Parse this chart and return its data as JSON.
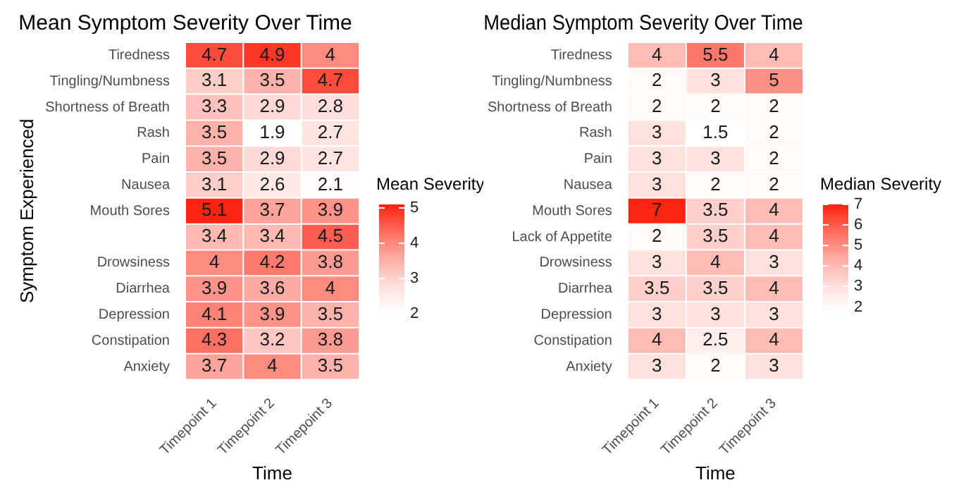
{
  "chart_data": [
    {
      "type": "heatmap",
      "title": "Mean Symptom Severity Over Time",
      "xlabel": "Time",
      "ylabel": "Symptom Experienced",
      "clabel": "Mean Severity",
      "categories": [
        "Timepoint 1",
        "Timepoint 2",
        "Timepoint 3"
      ],
      "y_categories": [
        "Tiredness",
        "Tingling/Numbness",
        "Shortness of Breath",
        "Rash",
        "Pain",
        "Nausea",
        "Mouth Sores",
        null,
        "Drowsiness",
        "Diarrhea",
        "Depression",
        "Constipation",
        "Anxiety"
      ],
      "cells": [
        [
          4.7,
          4.9,
          4
        ],
        [
          3.1,
          3.5,
          4.7
        ],
        [
          3.3,
          2.9,
          2.8
        ],
        [
          3.5,
          1.9,
          2.7
        ],
        [
          3.5,
          2.9,
          2.7
        ],
        [
          3.1,
          2.6,
          2.1
        ],
        [
          5.1,
          3.7,
          3.9
        ],
        [
          3.4,
          3.4,
          4.5
        ],
        [
          4,
          4.2,
          3.8
        ],
        [
          3.9,
          3.6,
          4
        ],
        [
          4.1,
          3.9,
          3.5
        ],
        [
          4.3,
          3.2,
          3.8
        ],
        [
          3.7,
          4,
          3.5
        ]
      ],
      "clim": [
        1.9,
        5.1
      ],
      "cticks": [
        2,
        3,
        4,
        5
      ],
      "data_labels": true
    },
    {
      "type": "heatmap",
      "title": "Median Symptom Severity Over Time",
      "xlabel": "Time",
      "clabel": "Median Severity",
      "categories": [
        "Timepoint 1",
        "Timepoint 2",
        "Timepoint 3"
      ],
      "y_categories": [
        "Tiredness",
        "Tingling/Numbness",
        "Shortness of Breath",
        "Rash",
        "Pain",
        "Nausea",
        "Mouth Sores",
        "Lack of Appetite",
        "Drowsiness",
        "Diarrhea",
        "Depression",
        "Constipation",
        "Anxiety"
      ],
      "cells": [
        [
          4,
          5.5,
          4
        ],
        [
          2,
          3,
          5
        ],
        [
          2,
          2,
          2
        ],
        [
          3,
          1.5,
          2
        ],
        [
          3,
          3,
          2
        ],
        [
          3,
          2,
          2
        ],
        [
          7,
          3.5,
          4
        ],
        [
          2,
          3.5,
          4
        ],
        [
          3,
          4,
          3
        ],
        [
          3.5,
          3.5,
          4
        ],
        [
          3,
          3,
          3
        ],
        [
          4,
          2.5,
          4
        ],
        [
          3,
          2,
          3
        ]
      ],
      "clim": [
        1.5,
        7
      ],
      "cticks": [
        2,
        3,
        4,
        5,
        6,
        7
      ],
      "data_labels": true
    }
  ]
}
